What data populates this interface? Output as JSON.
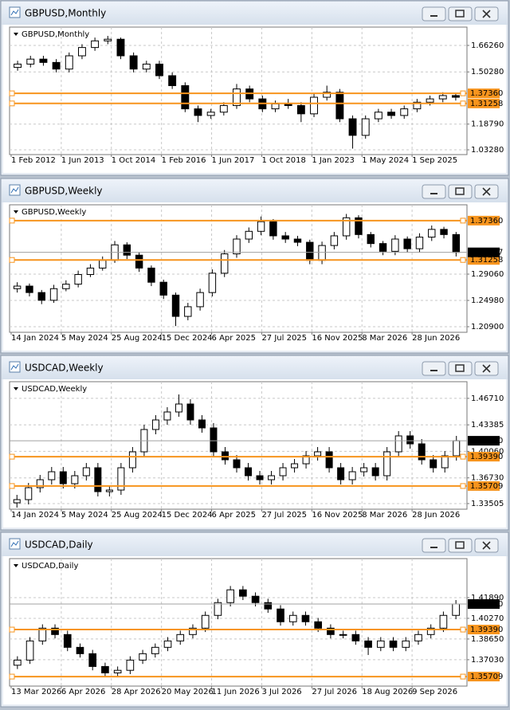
{
  "chart_data": [
    {
      "type": "candlestick",
      "window_title": "GBPUSD,Monthly",
      "x_labels": [
        "1 Feb 2012",
        "1 Jun 2013",
        "1 Oct 2014",
        "1 Feb 2016",
        "1 Jun 2017",
        "1 Oct 2018",
        "1 Jan 2023",
        "1 May 2024",
        "1 Sep 2025"
      ],
      "ylim": [
        1.0136,
        1.7636
      ],
      "yticks": [
        {
          "value": 1.6626,
          "label": "1.66260"
        },
        {
          "value": 1.5028,
          "label": "1.50280"
        },
        {
          "value": 1.1879,
          "label": "1.18790"
        },
        {
          "value": 1.0328,
          "label": "1.03280"
        }
      ],
      "levels": [
        {
          "value": 1.3736,
          "label": "1.37360"
        },
        1.31258
      ],
      "level_color": "#f7941d",
      "grid": true,
      "ohlc": [
        [
          1.53,
          1.57,
          1.51,
          1.55
        ],
        [
          1.55,
          1.6,
          1.53,
          1.58
        ],
        [
          1.58,
          1.6,
          1.54,
          1.56
        ],
        [
          1.56,
          1.58,
          1.5,
          1.52
        ],
        [
          1.52,
          1.62,
          1.5,
          1.6
        ],
        [
          1.6,
          1.67,
          1.58,
          1.65
        ],
        [
          1.65,
          1.71,
          1.63,
          1.69
        ],
        [
          1.69,
          1.72,
          1.67,
          1.7
        ],
        [
          1.7,
          1.71,
          1.58,
          1.6
        ],
        [
          1.6,
          1.62,
          1.5,
          1.52
        ],
        [
          1.52,
          1.57,
          1.5,
          1.55
        ],
        [
          1.55,
          1.57,
          1.46,
          1.48
        ],
        [
          1.48,
          1.5,
          1.4,
          1.42
        ],
        [
          1.42,
          1.44,
          1.26,
          1.28
        ],
        [
          1.28,
          1.3,
          1.2,
          1.24
        ],
        [
          1.24,
          1.28,
          1.22,
          1.26
        ],
        [
          1.26,
          1.32,
          1.24,
          1.3
        ],
        [
          1.3,
          1.43,
          1.28,
          1.4
        ],
        [
          1.4,
          1.42,
          1.32,
          1.34
        ],
        [
          1.34,
          1.36,
          1.26,
          1.28
        ],
        [
          1.28,
          1.33,
          1.26,
          1.31
        ],
        [
          1.31,
          1.34,
          1.28,
          1.3
        ],
        [
          1.3,
          1.32,
          1.2,
          1.25
        ],
        [
          1.25,
          1.37,
          1.23,
          1.35
        ],
        [
          1.35,
          1.42,
          1.33,
          1.38
        ],
        [
          1.38,
          1.4,
          1.2,
          1.22
        ],
        [
          1.22,
          1.24,
          1.04,
          1.12
        ],
        [
          1.12,
          1.24,
          1.1,
          1.22
        ],
        [
          1.22,
          1.28,
          1.2,
          1.26
        ],
        [
          1.26,
          1.28,
          1.22,
          1.24
        ],
        [
          1.24,
          1.3,
          1.22,
          1.28
        ],
        [
          1.28,
          1.34,
          1.26,
          1.32
        ],
        [
          1.32,
          1.36,
          1.3,
          1.34
        ],
        [
          1.34,
          1.38,
          1.32,
          1.36
        ],
        [
          1.36,
          1.37,
          1.33,
          1.35
        ]
      ]
    },
    {
      "type": "candlestick",
      "window_title": "GBPUSD,Weekly",
      "x_labels": [
        "14 Jan 2024",
        "5 May 2024",
        "25 Aug 2024",
        "15 Dec 2024",
        "6 Apr 2025",
        "27 Jul 2025",
        "16 Nov 2025",
        "8 Mar 2026",
        "28 Jun 2026"
      ],
      "ylim": [
        1.2028,
        1.3957
      ],
      "yticks": [
        {
          "value": 1.2906,
          "label": "1.29060"
        },
        {
          "value": 1.2498,
          "label": "1.24980"
        },
        {
          "value": 1.209,
          "label": "1.20900"
        }
      ],
      "levels": [
        {
          "value": 1.3736,
          "label": "1.37360"
        },
        1.31258
      ],
      "current_price": 1.32437,
      "level_color": "#f7941d",
      "grid": true,
      "ohlc": [
        [
          1.268,
          1.278,
          1.262,
          1.272
        ],
        [
          1.272,
          1.276,
          1.256,
          1.262
        ],
        [
          1.262,
          1.266,
          1.244,
          1.25
        ],
        [
          1.25,
          1.274,
          1.246,
          1.268
        ],
        [
          1.268,
          1.281,
          1.264,
          1.275
        ],
        [
          1.275,
          1.296,
          1.27,
          1.29
        ],
        [
          1.29,
          1.306,
          1.286,
          1.3
        ],
        [
          1.3,
          1.318,
          1.296,
          1.312
        ],
        [
          1.312,
          1.342,
          1.308,
          1.336
        ],
        [
          1.336,
          1.34,
          1.314,
          1.32
        ],
        [
          1.32,
          1.324,
          1.294,
          1.3
        ],
        [
          1.3,
          1.304,
          1.272,
          1.278
        ],
        [
          1.278,
          1.282,
          1.252,
          1.258
        ],
        [
          1.258,
          1.262,
          1.21,
          1.225
        ],
        [
          1.225,
          1.246,
          1.219,
          1.24
        ],
        [
          1.24,
          1.268,
          1.234,
          1.262
        ],
        [
          1.262,
          1.298,
          1.256,
          1.292
        ],
        [
          1.292,
          1.328,
          1.286,
          1.322
        ],
        [
          1.322,
          1.351,
          1.316,
          1.345
        ],
        [
          1.345,
          1.363,
          1.339,
          1.357
        ],
        [
          1.357,
          1.38,
          1.351,
          1.372
        ],
        [
          1.372,
          1.376,
          1.344,
          1.35
        ],
        [
          1.35,
          1.356,
          1.339,
          1.345
        ],
        [
          1.345,
          1.35,
          1.334,
          1.34
        ],
        [
          1.34,
          1.344,
          1.306,
          1.312
        ],
        [
          1.312,
          1.341,
          1.306,
          1.335
        ],
        [
          1.335,
          1.356,
          1.329,
          1.35
        ],
        [
          1.35,
          1.384,
          1.344,
          1.378
        ],
        [
          1.378,
          1.382,
          1.346,
          1.352
        ],
        [
          1.352,
          1.356,
          1.332,
          1.338
        ],
        [
          1.338,
          1.342,
          1.32,
          1.326
        ],
        [
          1.326,
          1.351,
          1.32,
          1.345
        ],
        [
          1.345,
          1.349,
          1.324,
          1.33
        ],
        [
          1.33,
          1.354,
          1.324,
          1.348
        ],
        [
          1.348,
          1.366,
          1.342,
          1.36
        ],
        [
          1.36,
          1.364,
          1.346,
          1.352
        ],
        [
          1.352,
          1.356,
          1.318,
          1.32437
        ]
      ]
    },
    {
      "type": "candlestick",
      "window_title": "USDCAD,Weekly",
      "x_labels": [
        "14 Jan 2024",
        "5 May 2024",
        "25 Aug 2024",
        "15 Dec 2024",
        "6 Apr 2025",
        "27 Jul 2025",
        "16 Nov 2025",
        "8 Mar 2026",
        "28 Jun 2026"
      ],
      "ylim": [
        1.33,
        1.486
      ],
      "yticks": [
        {
          "value": 1.4671,
          "label": "1.46710"
        },
        1.43385,
        {
          "value": 1.4006,
          "label": "1.40060"
        },
        {
          "value": 1.3673,
          "label": "1.36730"
        },
        1.33505
      ],
      "levels": [
        {
          "value": 1.3939,
          "label": "1.39390"
        },
        1.35709
      ],
      "current_price": {
        "value": 1.4139,
        "label": "1.41390"
      },
      "level_color": "#f7941d",
      "grid": true,
      "ohlc": [
        [
          1.336,
          1.346,
          1.33,
          1.34
        ],
        [
          1.34,
          1.361,
          1.334,
          1.355
        ],
        [
          1.355,
          1.371,
          1.349,
          1.365
        ],
        [
          1.365,
          1.381,
          1.359,
          1.375
        ],
        [
          1.375,
          1.381,
          1.354,
          1.36
        ],
        [
          1.36,
          1.376,
          1.354,
          1.37
        ],
        [
          1.37,
          1.386,
          1.364,
          1.38
        ],
        [
          1.38,
          1.386,
          1.344,
          1.35
        ],
        [
          1.35,
          1.358,
          1.344,
          1.352
        ],
        [
          1.352,
          1.386,
          1.346,
          1.38
        ],
        [
          1.38,
          1.406,
          1.374,
          1.4
        ],
        [
          1.4,
          1.434,
          1.394,
          1.428
        ],
        [
          1.428,
          1.446,
          1.422,
          1.44
        ],
        [
          1.44,
          1.456,
          1.434,
          1.45
        ],
        [
          1.45,
          1.472,
          1.444,
          1.46
        ],
        [
          1.46,
          1.466,
          1.434,
          1.44
        ],
        [
          1.44,
          1.446,
          1.424,
          1.43
        ],
        [
          1.43,
          1.436,
          1.394,
          1.4
        ],
        [
          1.4,
          1.406,
          1.384,
          1.39
        ],
        [
          1.39,
          1.396,
          1.374,
          1.38
        ],
        [
          1.38,
          1.386,
          1.364,
          1.37
        ],
        [
          1.37,
          1.376,
          1.359,
          1.365
        ],
        [
          1.365,
          1.376,
          1.359,
          1.37
        ],
        [
          1.37,
          1.386,
          1.364,
          1.38
        ],
        [
          1.38,
          1.391,
          1.374,
          1.385
        ],
        [
          1.385,
          1.401,
          1.379,
          1.395
        ],
        [
          1.395,
          1.406,
          1.389,
          1.4
        ],
        [
          1.4,
          1.406,
          1.374,
          1.38
        ],
        [
          1.38,
          1.386,
          1.359,
          1.365
        ],
        [
          1.365,
          1.381,
          1.359,
          1.375
        ],
        [
          1.375,
          1.386,
          1.369,
          1.38
        ],
        [
          1.38,
          1.386,
          1.364,
          1.37
        ],
        [
          1.37,
          1.406,
          1.364,
          1.4
        ],
        [
          1.4,
          1.426,
          1.394,
          1.42
        ],
        [
          1.42,
          1.426,
          1.404,
          1.41
        ],
        [
          1.41,
          1.416,
          1.384,
          1.39
        ],
        [
          1.39,
          1.396,
          1.374,
          1.38
        ],
        [
          1.38,
          1.401,
          1.374,
          1.395
        ],
        [
          1.395,
          1.42,
          1.389,
          1.4139
        ]
      ]
    },
    {
      "type": "candlestick",
      "window_title": "USDCAD,Daily",
      "x_labels": [
        "13 Mar 2026",
        "6 Apr 2026",
        "28 Apr 2026",
        "20 May 2026",
        "11 Jun 2026",
        "3 Jul 2026",
        "27 Jul 2026",
        "18 Aug 2026",
        "9 Sep 2026"
      ],
      "ylim": [
        1.3509,
        1.4482
      ],
      "yticks": [
        {
          "value": 1.4189,
          "label": "1.41890"
        },
        {
          "value": 1.4027,
          "label": "1.40270"
        },
        {
          "value": 1.3865,
          "label": "1.38650"
        },
        {
          "value": 1.3703,
          "label": "1.37030"
        }
      ],
      "levels": [
        {
          "value": 1.3939,
          "label": "1.39390"
        },
        1.35709
      ],
      "current_price": {
        "value": 1.4139,
        "label": "1.41390"
      },
      "level_color": "#f7941d",
      "grid": true,
      "ohlc": [
        [
          1.366,
          1.373,
          1.363,
          1.37
        ],
        [
          1.37,
          1.388,
          1.367,
          1.385
        ],
        [
          1.385,
          1.398,
          1.382,
          1.395
        ],
        [
          1.395,
          1.398,
          1.387,
          1.39
        ],
        [
          1.39,
          1.393,
          1.377,
          1.38
        ],
        [
          1.38,
          1.383,
          1.372,
          1.375
        ],
        [
          1.375,
          1.378,
          1.362,
          1.365
        ],
        [
          1.365,
          1.368,
          1.357,
          1.36
        ],
        [
          1.36,
          1.365,
          1.357,
          1.362
        ],
        [
          1.362,
          1.373,
          1.359,
          1.37
        ],
        [
          1.37,
          1.378,
          1.367,
          1.375
        ],
        [
          1.375,
          1.383,
          1.372,
          1.38
        ],
        [
          1.38,
          1.388,
          1.377,
          1.385
        ],
        [
          1.385,
          1.393,
          1.382,
          1.39
        ],
        [
          1.39,
          1.398,
          1.387,
          1.395
        ],
        [
          1.395,
          1.408,
          1.392,
          1.405
        ],
        [
          1.405,
          1.418,
          1.402,
          1.415
        ],
        [
          1.415,
          1.428,
          1.412,
          1.425
        ],
        [
          1.425,
          1.428,
          1.417,
          1.42
        ],
        [
          1.42,
          1.423,
          1.412,
          1.415
        ],
        [
          1.415,
          1.418,
          1.407,
          1.41
        ],
        [
          1.41,
          1.413,
          1.397,
          1.4
        ],
        [
          1.4,
          1.408,
          1.397,
          1.405
        ],
        [
          1.405,
          1.408,
          1.397,
          1.4
        ],
        [
          1.4,
          1.403,
          1.392,
          1.395
        ],
        [
          1.395,
          1.398,
          1.387,
          1.39
        ],
        [
          1.39,
          1.393,
          1.387,
          1.39
        ],
        [
          1.39,
          1.393,
          1.382,
          1.385
        ],
        [
          1.385,
          1.388,
          1.374,
          1.38
        ],
        [
          1.38,
          1.388,
          1.377,
          1.385
        ],
        [
          1.385,
          1.388,
          1.377,
          1.38
        ],
        [
          1.38,
          1.388,
          1.377,
          1.385
        ],
        [
          1.385,
          1.393,
          1.382,
          1.39
        ],
        [
          1.39,
          1.398,
          1.387,
          1.395
        ],
        [
          1.395,
          1.408,
          1.392,
          1.405
        ],
        [
          1.405,
          1.417,
          1.402,
          1.4139
        ]
      ]
    }
  ]
}
